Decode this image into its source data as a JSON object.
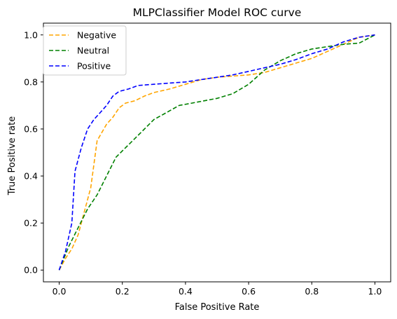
{
  "chart_data": {
    "type": "line",
    "title": "MLPClassifier Model ROC curve",
    "xlabel": "False Positive Rate",
    "ylabel": "True Positive rate",
    "xlim": [
      -0.05,
      1.05
    ],
    "ylim": [
      -0.05,
      1.05
    ],
    "xticks": [
      "0.0",
      "0.2",
      "0.4",
      "0.6",
      "0.8",
      "1.0"
    ],
    "yticks": [
      "0.0",
      "0.2",
      "0.4",
      "0.6",
      "0.8",
      "1.0"
    ],
    "grid": false,
    "legend_position": "top-left",
    "series": [
      {
        "name": "Negative",
        "color": "#ffa500",
        "style": "dashed",
        "x": [
          0.0,
          0.02,
          0.04,
          0.06,
          0.08,
          0.1,
          0.12,
          0.15,
          0.17,
          0.19,
          0.21,
          0.24,
          0.27,
          0.3,
          0.35,
          0.4,
          0.45,
          0.5,
          0.55,
          0.6,
          0.65,
          0.7,
          0.75,
          0.8,
          0.85,
          0.9,
          0.95,
          1.0
        ],
        "y": [
          0.0,
          0.05,
          0.09,
          0.15,
          0.25,
          0.35,
          0.55,
          0.62,
          0.65,
          0.69,
          0.71,
          0.72,
          0.74,
          0.755,
          0.77,
          0.79,
          0.81,
          0.82,
          0.825,
          0.83,
          0.84,
          0.86,
          0.88,
          0.9,
          0.93,
          0.96,
          0.99,
          1.0
        ]
      },
      {
        "name": "Neutral",
        "color": "#008000",
        "style": "dashed",
        "x": [
          0.0,
          0.03,
          0.06,
          0.09,
          0.12,
          0.15,
          0.18,
          0.21,
          0.24,
          0.27,
          0.3,
          0.34,
          0.38,
          0.42,
          0.46,
          0.5,
          0.55,
          0.6,
          0.65,
          0.7,
          0.75,
          0.8,
          0.85,
          0.9,
          0.95,
          1.0
        ],
        "y": [
          0.0,
          0.1,
          0.18,
          0.26,
          0.32,
          0.4,
          0.48,
          0.52,
          0.56,
          0.6,
          0.64,
          0.67,
          0.7,
          0.71,
          0.72,
          0.73,
          0.75,
          0.79,
          0.85,
          0.89,
          0.92,
          0.94,
          0.95,
          0.96,
          0.965,
          1.0
        ]
      },
      {
        "name": "Positive",
        "color": "#0000ff",
        "style": "dashed",
        "x": [
          0.0,
          0.02,
          0.04,
          0.05,
          0.07,
          0.09,
          0.11,
          0.13,
          0.15,
          0.17,
          0.19,
          0.22,
          0.25,
          0.3,
          0.35,
          0.4,
          0.45,
          0.5,
          0.55,
          0.6,
          0.65,
          0.7,
          0.75,
          0.8,
          0.85,
          0.9,
          0.95,
          1.0
        ],
        "y": [
          0.0,
          0.08,
          0.2,
          0.42,
          0.52,
          0.6,
          0.64,
          0.67,
          0.7,
          0.74,
          0.76,
          0.77,
          0.785,
          0.79,
          0.795,
          0.8,
          0.81,
          0.82,
          0.83,
          0.845,
          0.86,
          0.875,
          0.895,
          0.92,
          0.94,
          0.97,
          0.99,
          1.0
        ]
      }
    ]
  }
}
